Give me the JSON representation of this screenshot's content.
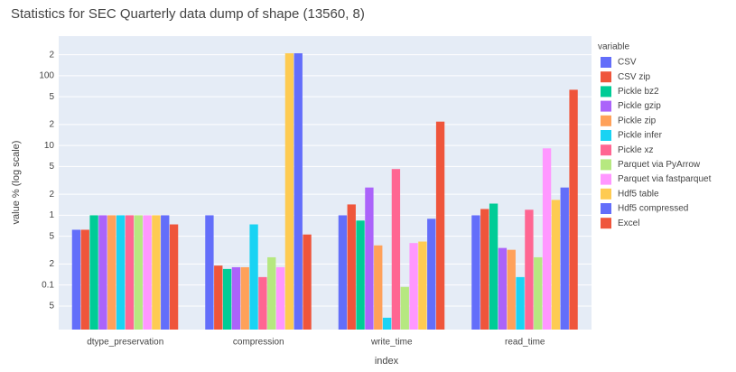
{
  "chart_data": {
    "type": "bar",
    "title": "Statistics for SEC Quarterly data dump of shape (13560, 8)",
    "x_label": "index",
    "y_label": "value % (log scale)",
    "legend_title": "variable",
    "log_y": true,
    "grid": true,
    "categories": [
      "dtype_preservation",
      "compression",
      "write_time",
      "read_time"
    ],
    "ylim": [
      0.023,
      370
    ],
    "yticks": [
      {
        "value": 0.05,
        "label": "5"
      },
      0.1,
      {
        "value": 0.2,
        "label": "2"
      },
      {
        "value": 0.5,
        "label": "5"
      },
      1,
      2,
      5,
      10,
      {
        "value": 20,
        "label": "2"
      },
      {
        "value": 50,
        "label": "5"
      },
      100,
      {
        "value": 200,
        "label": "2"
      }
    ],
    "series": [
      {
        "name": "CSV",
        "color": "#636efa",
        "values": [
          0.62,
          1,
          1,
          1
        ]
      },
      {
        "name": "CSV zip",
        "color": "#ef553b",
        "values": [
          0.62,
          0.19,
          1.43,
          1.23
        ]
      },
      {
        "name": "Pickle bz2",
        "color": "#00cc96",
        "values": [
          1,
          0.17,
          0.84,
          1.47
        ]
      },
      {
        "name": "Pickle gzip",
        "color": "#ab63fa",
        "values": [
          1,
          0.18,
          2.5,
          0.34
        ]
      },
      {
        "name": "Pickle zip",
        "color": "#ffa15a",
        "values": [
          1,
          0.18,
          0.37,
          0.32
        ]
      },
      {
        "name": "Pickle infer",
        "color": "#19d3f3",
        "values": [
          1,
          0.74,
          0.034,
          0.13
        ]
      },
      {
        "name": "Pickle xz",
        "color": "#ff6692",
        "values": [
          1,
          0.13,
          4.6,
          1.2
        ]
      },
      {
        "name": "Parquet via PyArrow",
        "color": "#b6e880",
        "values": [
          1,
          0.25,
          0.094,
          0.25
        ]
      },
      {
        "name": "Parquet via fastparquet",
        "color": "#ff97ff",
        "values": [
          1,
          0.18,
          0.4,
          9.1
        ]
      },
      {
        "name": "Hdf5 table",
        "color": "#fecb52",
        "values": [
          1,
          210,
          0.42,
          1.66
        ]
      },
      {
        "name": "Hdf5 compressed",
        "color": "#636efa",
        "values": [
          1,
          210,
          0.89,
          2.5
        ]
      },
      {
        "name": "Excel",
        "color": "#ef553b",
        "values": [
          0.74,
          0.53,
          22,
          63
        ]
      }
    ]
  }
}
